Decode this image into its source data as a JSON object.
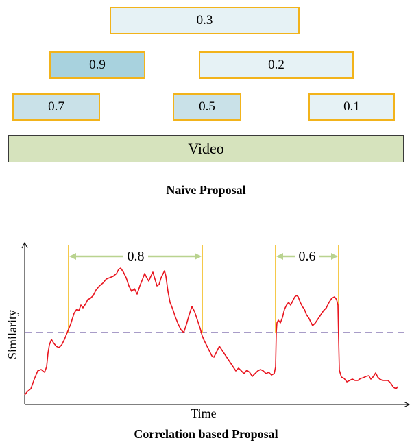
{
  "naive": {
    "boxes": [
      {
        "score": "0.3",
        "style": "light"
      },
      {
        "score": "0.9",
        "style": "dark"
      },
      {
        "score": "0.2",
        "style": "light"
      },
      {
        "score": "0.7",
        "style": "mid"
      },
      {
        "score": "0.5",
        "style": "mid"
      },
      {
        "score": "0.1",
        "style": "light"
      }
    ],
    "video_label": "Video",
    "caption": "Naive Proposal"
  },
  "correlation": {
    "xlabel": "Time",
    "ylabel": "Similarity",
    "intervals": [
      {
        "score": "0.8"
      },
      {
        "score": "0.6"
      }
    ],
    "caption": "Correlation based Proposal"
  },
  "colors": {
    "box_border": "#f2b31b",
    "video_fill": "#d6e3bd",
    "curve": "#e8141e",
    "threshold": "#8b7bb5",
    "interval_line": "#f5c94a",
    "interval_arrow": "#b9d38f"
  }
}
